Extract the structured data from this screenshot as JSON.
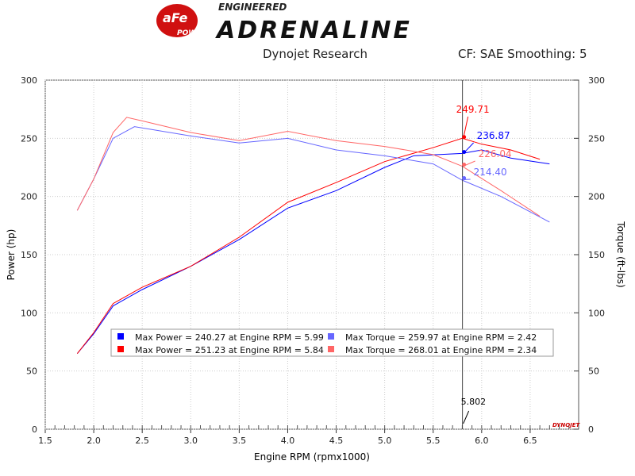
{
  "logo": {
    "brand": "aFe",
    "sub": "POWER",
    "tag_small": "ENGINEERED",
    "tag_big": "ADRENALINE"
  },
  "header": {
    "left": "Dynojet Research",
    "right": "CF: SAE Smoothing: 5"
  },
  "watermark": "DYNOJET",
  "chart_data": {
    "type": "line",
    "xlabel": "Engine RPM (rpmx1000)",
    "ylabel": "Power (hp)",
    "y2label": "Torque (ft-lbs)",
    "xlim": [
      1.5,
      7.0
    ],
    "ylim": [
      0,
      300
    ],
    "xticks": [
      "1.5",
      "2.0",
      "2.5",
      "3.0",
      "3.5",
      "4.0",
      "4.5",
      "5.0",
      "5.5",
      "6.0",
      "6.5"
    ],
    "yticks": [
      "0",
      "50",
      "100",
      "150",
      "200",
      "250",
      "300"
    ],
    "grid": true,
    "cursor": {
      "x": 5.802,
      "label": "5.802",
      "values": [
        {
          "text": "249.71",
          "y": 249.71,
          "color": "#ff0000"
        },
        {
          "text": "236.87",
          "y": 236.87,
          "color": "#0000ff"
        },
        {
          "text": "226.04",
          "y": 226.04,
          "color": "#ff6666"
        },
        {
          "text": "214.40",
          "y": 214.4,
          "color": "#6666ff"
        }
      ]
    },
    "series": [
      {
        "color": "#0000ff",
        "x": [
          1.83,
          2.0,
          2.2,
          2.5,
          3.0,
          3.5,
          4.0,
          4.5,
          5.0,
          5.3,
          5.8,
          6.0,
          6.3,
          6.7
        ],
        "y": [
          65,
          82,
          106,
          120,
          140,
          163,
          190,
          205,
          225,
          235,
          237,
          240,
          233,
          228
        ]
      },
      {
        "color": "#ff0000",
        "x": [
          1.83,
          2.0,
          2.2,
          2.5,
          3.0,
          3.5,
          4.0,
          4.5,
          5.0,
          5.5,
          5.8,
          6.0,
          6.3,
          6.6
        ],
        "y": [
          65,
          83,
          108,
          122,
          140,
          165,
          195,
          212,
          230,
          242,
          250,
          245,
          240,
          232
        ]
      },
      {
        "color": "#6666ff",
        "x": [
          1.83,
          2.0,
          2.2,
          2.42,
          3.0,
          3.5,
          4.0,
          4.5,
          5.0,
          5.5,
          5.8,
          6.2,
          6.7
        ],
        "y": [
          188,
          215,
          250,
          260,
          252,
          246,
          250,
          240,
          235,
          228,
          214,
          200,
          178
        ]
      },
      {
        "color": "#ff6666",
        "x": [
          1.83,
          2.0,
          2.2,
          2.34,
          2.5,
          3.0,
          3.5,
          4.0,
          4.5,
          5.0,
          5.5,
          5.8,
          6.2,
          6.6
        ],
        "y": [
          188,
          215,
          255,
          268,
          265,
          255,
          248,
          256,
          248,
          243,
          236,
          226,
          205,
          183
        ]
      }
    ],
    "legend": {
      "placement": "bottom-center",
      "entries": [
        {
          "text": "Max Power = 240.27 at Engine RPM = 5.99",
          "color": "#0000ff"
        },
        {
          "text": "Max Torque = 259.97 at Engine RPM = 2.42",
          "color": "#6666ff"
        },
        {
          "text": "Max Power = 251.23 at Engine RPM = 5.84",
          "color": "#ff0000"
        },
        {
          "text": "Max Torque = 268.01 at Engine RPM = 2.34",
          "color": "#ff6666"
        }
      ]
    }
  }
}
